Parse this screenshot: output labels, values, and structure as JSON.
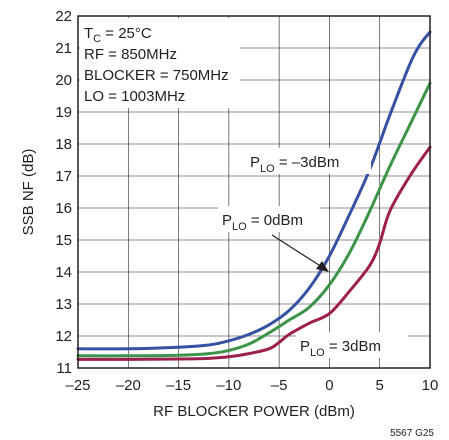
{
  "chart_data": {
    "type": "line",
    "xlabel": "RF BLOCKER POWER (dBm)",
    "ylabel": "SSB NF (dB)",
    "xlim": [
      -25,
      10
    ],
    "ylim": [
      11,
      22
    ],
    "x_ticks": [
      -25,
      -20,
      -15,
      -10,
      -5,
      0,
      5,
      10
    ],
    "x_tick_labels": [
      "–25",
      "–20",
      "–15",
      "–10",
      "–5",
      "0",
      "5",
      "10"
    ],
    "y_ticks": [
      11,
      12,
      13,
      14,
      15,
      16,
      17,
      18,
      19,
      20,
      21,
      22
    ],
    "grid": true,
    "conditions": {
      "tc_prefix": "T",
      "tc_sub": "C",
      "tc_value": " = 25°C",
      "rf": "RF = 850MHz",
      "blocker": "BLOCKER = 750MHz",
      "lo": "LO = 1003MHz"
    },
    "figure_code": "5567 G25",
    "series": [
      {
        "name": "PLO = –3dBm",
        "label_prefix": "P",
        "label_sub": "LO",
        "label_value": " = –3dBm",
        "color": "#3650a2",
        "x": [
          -25,
          -20,
          -15,
          -12,
          -10,
          -8,
          -6,
          -4,
          -2,
          0,
          2,
          4,
          6,
          8,
          9,
          10
        ],
        "y": [
          11.6,
          11.6,
          11.65,
          11.72,
          11.85,
          12.05,
          12.35,
          12.8,
          13.5,
          14.5,
          15.8,
          17.2,
          18.9,
          20.5,
          21.1,
          21.5
        ]
      },
      {
        "name": "PLO = 0dBm",
        "label_prefix": "P",
        "label_sub": "LO",
        "label_value": " = 0dBm",
        "color": "#3c9448",
        "x": [
          -25,
          -20,
          -15,
          -12,
          -10,
          -8,
          -6,
          -4,
          -2,
          0,
          2,
          4,
          6,
          8,
          10
        ],
        "y": [
          11.38,
          11.38,
          11.4,
          11.45,
          11.55,
          11.75,
          12.1,
          12.5,
          12.9,
          13.6,
          14.6,
          15.9,
          17.3,
          18.6,
          19.9
        ]
      },
      {
        "name": "PLO = 3dBm",
        "label_prefix": "P",
        "label_sub": "LO",
        "label_value": " = 3dBm",
        "color": "#9c1f4c",
        "x": [
          -25,
          -20,
          -15,
          -12,
          -10,
          -8,
          -6,
          -5,
          -4,
          -2,
          0,
          2,
          4,
          5,
          6,
          8,
          10
        ],
        "y": [
          11.27,
          11.27,
          11.28,
          11.3,
          11.35,
          11.45,
          11.6,
          11.8,
          12.05,
          12.4,
          12.7,
          13.4,
          14.2,
          14.9,
          15.9,
          17.0,
          17.9
        ]
      }
    ]
  }
}
